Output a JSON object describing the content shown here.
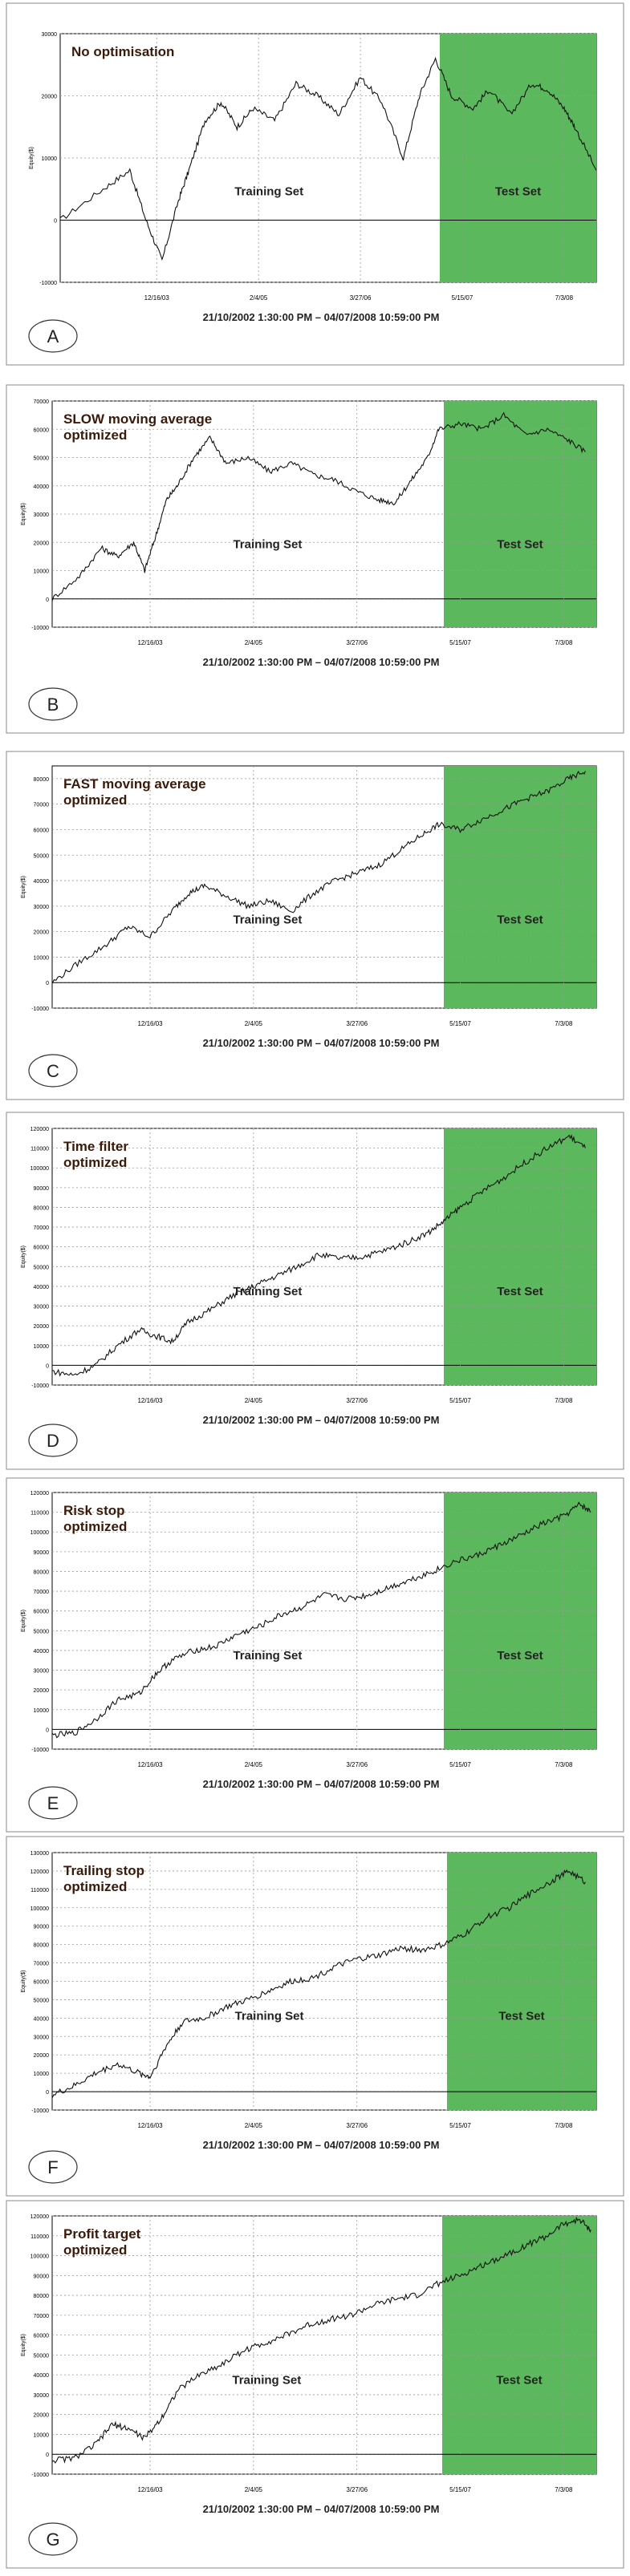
{
  "colors": {
    "test_set_fill": "#5cb85c",
    "equity_line": "#111111",
    "title_text": "#3a1a0a",
    "grid": "#999999",
    "frame": "#888888"
  },
  "date_range_caption": "21/10/2002 1:30:00 PM – 04/07/2008 10:59:00 PM",
  "training_label": "Training Set",
  "test_label": "Test Set",
  "ylabel": "Equity($)",
  "x_ticks": [
    "12/16/03",
    "2/4/05",
    "3/27/06",
    "5/15/07",
    "7/3/08"
  ],
  "chart_data": [
    {
      "type": "line",
      "panel_letter": "A",
      "title_lines": [
        "No optimisation"
      ],
      "ytick_labels": [
        "-10000",
        "0",
        "10000",
        "20000",
        "30000"
      ],
      "ylim": [
        -10000,
        30000
      ],
      "x": [
        0,
        0.08,
        0.13,
        0.16,
        0.19,
        0.22,
        0.24,
        0.27,
        0.3,
        0.33,
        0.36,
        0.4,
        0.44,
        0.48,
        0.52,
        0.56,
        0.6,
        0.64,
        0.67,
        0.7,
        0.73,
        0.77,
        0.8,
        0.84,
        0.88,
        0.91,
        0.94,
        0.96,
        1.0
      ],
      "values": [
        0,
        5000,
        8000,
        0,
        -6500,
        3000,
        8000,
        16000,
        19000,
        15000,
        18000,
        16000,
        22000,
        20000,
        17000,
        23000,
        19000,
        10000,
        20000,
        26000,
        20000,
        18000,
        21000,
        17000,
        22000,
        21000,
        18000,
        15000,
        8000
      ]
    },
    {
      "type": "line",
      "panel_letter": "B",
      "title_lines": [
        "SLOW moving average",
        "optimized"
      ],
      "ytick_labels": [
        "-10000",
        "0",
        "10000",
        "20000",
        "30000",
        "40000",
        "50000",
        "60000",
        "70000"
      ],
      "ylim": [
        -10000,
        70000
      ],
      "x": [
        0,
        0.05,
        0.09,
        0.12,
        0.15,
        0.17,
        0.19,
        0.21,
        0.23,
        0.26,
        0.29,
        0.32,
        0.36,
        0.4,
        0.44,
        0.48,
        0.52,
        0.56,
        0.6,
        0.63,
        0.66,
        0.69,
        0.71,
        0.75,
        0.79,
        0.83,
        0.87,
        0.91,
        0.95,
        0.98
      ],
      "values": [
        0,
        8000,
        18000,
        15000,
        20000,
        10000,
        22000,
        35000,
        40000,
        50000,
        57000,
        48000,
        50000,
        45000,
        48000,
        44000,
        42000,
        38000,
        35000,
        34000,
        42000,
        50000,
        60000,
        62000,
        60000,
        65000,
        58000,
        60000,
        56000,
        52000
      ]
    },
    {
      "type": "line",
      "panel_letter": "C",
      "title_lines": [
        "FAST moving average",
        "optimized"
      ],
      "ytick_labels": [
        "-10000",
        "0",
        "10000",
        "20000",
        "30000",
        "40000",
        "50000",
        "60000",
        "70000",
        "80000"
      ],
      "ylim": [
        -10000,
        85000
      ],
      "x": [
        0,
        0.05,
        0.1,
        0.14,
        0.18,
        0.22,
        0.25,
        0.28,
        0.32,
        0.36,
        0.4,
        0.44,
        0.48,
        0.52,
        0.56,
        0.6,
        0.64,
        0.68,
        0.71,
        0.75,
        0.79,
        0.83,
        0.87,
        0.91,
        0.95,
        0.98
      ],
      "values": [
        0,
        8000,
        15000,
        22000,
        18000,
        28000,
        35000,
        38000,
        34000,
        30000,
        32000,
        28000,
        35000,
        40000,
        43000,
        46000,
        52000,
        58000,
        62000,
        60000,
        64000,
        68000,
        72000,
        75000,
        80000,
        83000
      ]
    },
    {
      "type": "line",
      "panel_letter": "D",
      "title_lines": [
        "Time filter",
        "optimized"
      ],
      "ytick_labels": [
        "-10000",
        "0",
        "10000",
        "20000",
        "30000",
        "40000",
        "50000",
        "60000",
        "70000",
        "80000",
        "90000",
        "100000",
        "110000",
        "120000"
      ],
      "ylim": [
        -10000,
        120000
      ],
      "x": [
        0,
        0.04,
        0.08,
        0.12,
        0.16,
        0.19,
        0.22,
        0.25,
        0.29,
        0.33,
        0.37,
        0.41,
        0.45,
        0.49,
        0.53,
        0.57,
        0.61,
        0.65,
        0.69,
        0.72,
        0.75,
        0.79,
        0.83,
        0.87,
        0.91,
        0.95,
        0.98
      ],
      "values": [
        -3000,
        -5000,
        0,
        10000,
        18000,
        15000,
        12000,
        22000,
        28000,
        35000,
        40000,
        45000,
        50000,
        56000,
        54000,
        55000,
        58000,
        62000,
        67000,
        73000,
        80000,
        88000,
        95000,
        103000,
        110000,
        116000,
        110000
      ]
    },
    {
      "type": "line",
      "panel_letter": "E",
      "title_lines": [
        "Risk stop",
        "optimized"
      ],
      "ytick_labels": [
        "-10000",
        "0",
        "10000",
        "20000",
        "30000",
        "40000",
        "50000",
        "60000",
        "70000",
        "80000",
        "90000",
        "100000",
        "110000",
        "120000"
      ],
      "ylim": [
        -10000,
        120000
      ],
      "x": [
        0,
        0.04,
        0.08,
        0.12,
        0.16,
        0.19,
        0.22,
        0.26,
        0.3,
        0.34,
        0.38,
        0.42,
        0.46,
        0.5,
        0.54,
        0.58,
        0.62,
        0.66,
        0.7,
        0.74,
        0.78,
        0.82,
        0.86,
        0.9,
        0.94,
        0.97,
        0.99
      ],
      "values": [
        -3000,
        -2000,
        5000,
        15000,
        18000,
        28000,
        35000,
        40000,
        42000,
        48000,
        52000,
        58000,
        62000,
        68000,
        66000,
        68000,
        72000,
        76000,
        80000,
        85000,
        88000,
        93000,
        98000,
        104000,
        108000,
        114000,
        110000
      ]
    },
    {
      "type": "line",
      "panel_letter": "F",
      "title_lines": [
        "Trailing stop",
        "optimized"
      ],
      "ytick_labels": [
        "-10000",
        "0",
        "10000",
        "20000",
        "30000",
        "40000",
        "50000",
        "60000",
        "70000",
        "80000",
        "90000",
        "100000",
        "110000",
        "120000",
        "130000"
      ],
      "ylim": [
        -10000,
        130000
      ],
      "x": [
        0,
        0.04,
        0.08,
        0.12,
        0.16,
        0.18,
        0.21,
        0.24,
        0.28,
        0.32,
        0.36,
        0.4,
        0.44,
        0.48,
        0.52,
        0.56,
        0.6,
        0.64,
        0.68,
        0.72,
        0.76,
        0.8,
        0.84,
        0.88,
        0.92,
        0.95,
        0.98
      ],
      "values": [
        -2000,
        3000,
        10000,
        15000,
        10000,
        8000,
        25000,
        38000,
        40000,
        46000,
        50000,
        55000,
        60000,
        62000,
        68000,
        72000,
        74000,
        78000,
        77000,
        80000,
        86000,
        95000,
        100000,
        108000,
        115000,
        120000,
        114000
      ]
    },
    {
      "type": "line",
      "panel_letter": "G",
      "title_lines": [
        "Profit target",
        "optimized"
      ],
      "ytick_labels": [
        "-10000",
        "0",
        "10000",
        "20000",
        "30000",
        "40000",
        "50000",
        "60000",
        "70000",
        "80000",
        "90000",
        "100000",
        "110000",
        "120000"
      ],
      "ylim": [
        -10000,
        120000
      ],
      "x": [
        0,
        0.04,
        0.08,
        0.11,
        0.14,
        0.17,
        0.2,
        0.23,
        0.27,
        0.31,
        0.35,
        0.39,
        0.43,
        0.47,
        0.51,
        0.55,
        0.59,
        0.63,
        0.67,
        0.71,
        0.75,
        0.79,
        0.83,
        0.87,
        0.91,
        0.94,
        0.97,
        0.99
      ],
      "values": [
        -3000,
        -2000,
        5000,
        15000,
        13000,
        8000,
        18000,
        32000,
        40000,
        45000,
        52000,
        56000,
        60000,
        65000,
        68000,
        70000,
        75000,
        78000,
        80000,
        86000,
        90000,
        95000,
        100000,
        105000,
        110000,
        116000,
        118000,
        113000
      ]
    }
  ]
}
